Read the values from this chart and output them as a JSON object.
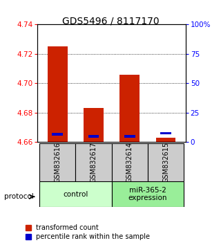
{
  "title": "GDS5496 / 8117170",
  "samples": [
    "GSM832616",
    "GSM832617",
    "GSM832614",
    "GSM832615"
  ],
  "red_values": [
    4.725,
    4.683,
    4.706,
    4.663
  ],
  "blue_values": [
    4.6655,
    4.664,
    4.664,
    4.666
  ],
  "ymin": 4.66,
  "ymax": 4.74,
  "yticks_left": [
    4.66,
    4.68,
    4.7,
    4.72,
    4.74
  ],
  "yticks_right": [
    0,
    25,
    50,
    75,
    100
  ],
  "bar_bottom": 4.66,
  "bar_width": 0.55,
  "red_color": "#cc2200",
  "blue_color": "#0000cc",
  "groups": [
    {
      "label": "control",
      "samples": [
        0,
        1
      ],
      "color": "#ccffcc"
    },
    {
      "label": "miR-365-2\nexpression",
      "samples": [
        2,
        3
      ],
      "color": "#99ee99"
    }
  ],
  "legend_red": "transformed count",
  "legend_blue": "percentile rank within the sample",
  "protocol_label": "protocol",
  "title_fontsize": 10,
  "tick_fontsize": 7.5,
  "sample_label_fontsize": 7,
  "group_label_fontsize": 7.5,
  "legend_fontsize": 7,
  "background_color": "#ffffff",
  "plot_bg": "#ffffff",
  "sample_box_color": "#cccccc"
}
